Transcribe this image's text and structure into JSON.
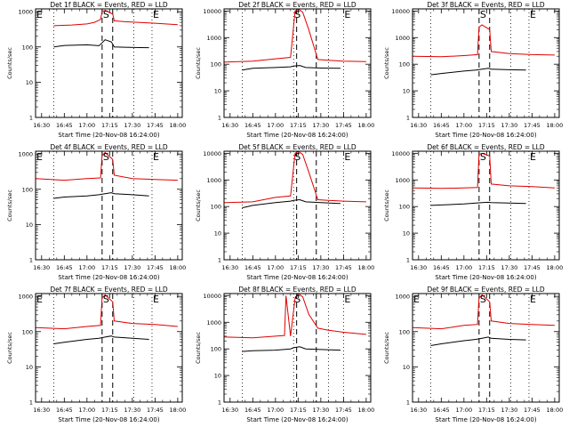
{
  "figure": {
    "background": "#ffffff",
    "events_color": "#000000",
    "lld_color": "#e00000"
  },
  "chart_data": [
    {
      "type": "line",
      "title": "Det 1f BLACK = Events, RED = LLD",
      "xlabel": "Start Time (20-Nov-08 16:24:00)",
      "ylabel": "Counts/sec",
      "yscale": "log",
      "ylim": [
        1,
        1200
      ],
      "xlim": [
        "16:26",
        "18:03"
      ],
      "xticks": [
        "16:30",
        "16:45",
        "17:00",
        "17:15",
        "17:30",
        "17:45",
        "18:00"
      ],
      "yticks": [
        "1",
        "10",
        "100",
        "1000"
      ],
      "markers": [
        {
          "label": "E",
          "x": "16:26",
          "style": "dotted"
        },
        {
          "label": "",
          "x": "16:38",
          "style": "dotted"
        },
        {
          "label": "S",
          "x": "17:10",
          "style": "dashed"
        },
        {
          "label": "",
          "x": "17:17",
          "style": "dashed"
        },
        {
          "label": "",
          "x": "17:31",
          "style": "dotted"
        },
        {
          "label": "E",
          "x": "17:43",
          "style": "dotted"
        }
      ],
      "series": [
        {
          "color": "#e00000",
          "x": [
            "16:38",
            "16:50",
            "17:00",
            "17:05",
            "17:09",
            "17:10",
            "17:12",
            "17:17",
            "17:18",
            "17:25",
            "17:45",
            "18:00"
          ],
          "y": [
            400,
            420,
            450,
            500,
            600,
            1000,
            1100,
            850,
            550,
            520,
            470,
            430
          ]
        },
        {
          "color": "#000000",
          "x": [
            "16:38",
            "16:45",
            "17:00",
            "17:08",
            "17:10",
            "17:12",
            "17:16",
            "17:17",
            "17:18",
            "17:25",
            "17:35",
            "17:41"
          ],
          "y": [
            100,
            110,
            115,
            108,
            130,
            160,
            140,
            120,
            100,
            98,
            96,
            95
          ]
        }
      ]
    },
    {
      "type": "line",
      "title": "Det 2f BLACK = Events, RED = LLD",
      "xlabel": "Start Time (20-Nov-08 16:24:00)",
      "ylabel": "Counts/sec",
      "yscale": "log",
      "ylim": [
        1,
        12000
      ],
      "xlim": [
        "16:26",
        "18:03"
      ],
      "xticks": [
        "16:30",
        "16:45",
        "17:00",
        "17:15",
        "17:30",
        "17:45",
        "18:00"
      ],
      "yticks": [
        "1",
        "10",
        "100",
        "1000",
        "10000"
      ],
      "markers": [
        {
          "label": "",
          "x": "16:38",
          "style": "dotted"
        },
        {
          "label": "S",
          "x": "17:12",
          "style": "dotted"
        },
        {
          "label": "",
          "x": "17:14",
          "style": "dashed"
        },
        {
          "label": "",
          "x": "17:27",
          "style": "dashed"
        },
        {
          "label": "",
          "x": "17:35",
          "style": "dotted"
        },
        {
          "label": "E",
          "x": "17:45",
          "style": "dotted"
        }
      ],
      "series": [
        {
          "color": "#e00000",
          "x": [
            "16:26",
            "16:45",
            "17:00",
            "17:10",
            "17:13",
            "17:15",
            "17:18",
            "17:22",
            "17:28",
            "17:35",
            "17:45",
            "18:00"
          ],
          "y": [
            120,
            130,
            160,
            180,
            10000,
            12000,
            9000,
            2000,
            150,
            140,
            130,
            125
          ]
        },
        {
          "color": "#000000",
          "x": [
            "16:38",
            "16:45",
            "17:00",
            "17:10",
            "17:12",
            "17:16",
            "17:20",
            "17:30",
            "17:43"
          ],
          "y": [
            60,
            70,
            75,
            80,
            85,
            90,
            75,
            72,
            70
          ]
        }
      ]
    },
    {
      "type": "line",
      "title": "Det 3f BLACK = Events, RED = LLD",
      "xlabel": "Start Time (20-Nov-08 16:24:00)",
      "ylabel": "Counts/sec",
      "yscale": "log",
      "ylim": [
        1,
        12000
      ],
      "xlim": [
        "16:26",
        "18:03"
      ],
      "xticks": [
        "16:30",
        "16:45",
        "17:00",
        "17:15",
        "17:30",
        "17:45",
        "18:00"
      ],
      "yticks": [
        "1",
        "10",
        "100",
        "1000",
        "10000"
      ],
      "markers": [
        {
          "label": "",
          "x": "16:38",
          "style": "dotted"
        },
        {
          "label": "S",
          "x": "17:10",
          "style": "dashed"
        },
        {
          "label": "",
          "x": "17:17",
          "style": "dashed"
        },
        {
          "label": "",
          "x": "17:31",
          "style": "dotted"
        },
        {
          "label": "E",
          "x": "17:43",
          "style": "dotted"
        }
      ],
      "series": [
        {
          "color": "#e00000",
          "x": [
            "16:26",
            "16:45",
            "17:00",
            "17:09",
            "17:10",
            "17:12",
            "17:17",
            "17:18",
            "17:30",
            "17:45",
            "18:00"
          ],
          "y": [
            200,
            190,
            210,
            230,
            2500,
            3000,
            2000,
            300,
            250,
            230,
            220
          ]
        },
        {
          "color": "#000000",
          "x": [
            "16:38",
            "16:45",
            "17:00",
            "17:08",
            "17:12",
            "17:16",
            "17:18",
            "17:30",
            "17:41"
          ],
          "y": [
            40,
            45,
            55,
            60,
            65,
            70,
            65,
            62,
            60
          ]
        }
      ]
    },
    {
      "type": "line",
      "title": "Det 4f BLACK = Events, RED = LLD",
      "xlabel": "Start Time (20-Nov-08 16:24:00)",
      "ylabel": "Counts/sec",
      "yscale": "log",
      "ylim": [
        1,
        1200
      ],
      "xlim": [
        "16:26",
        "18:03"
      ],
      "xticks": [
        "16:30",
        "16:45",
        "17:00",
        "17:15",
        "17:30",
        "17:45",
        "18:00"
      ],
      "yticks": [
        "1",
        "10",
        "100",
        "1000"
      ],
      "markers": [
        {
          "label": "E",
          "x": "16:26",
          "style": "dotted"
        },
        {
          "label": "",
          "x": "16:38",
          "style": "dotted"
        },
        {
          "label": "S",
          "x": "17:10",
          "style": "dashed"
        },
        {
          "label": "",
          "x": "17:17",
          "style": "dashed"
        },
        {
          "label": "",
          "x": "17:31",
          "style": "dotted"
        },
        {
          "label": "E",
          "x": "17:43",
          "style": "dotted"
        }
      ],
      "series": [
        {
          "color": "#e00000",
          "x": [
            "16:26",
            "16:45",
            "17:00",
            "17:09",
            "17:10",
            "17:12",
            "17:17",
            "17:18",
            "17:30",
            "17:45",
            "18:00"
          ],
          "y": [
            200,
            180,
            200,
            210,
            900,
            1100,
            700,
            250,
            200,
            190,
            180
          ]
        },
        {
          "color": "#000000",
          "x": [
            "16:38",
            "16:45",
            "17:00",
            "17:08",
            "17:12",
            "17:16",
            "17:18",
            "17:30",
            "17:41"
          ],
          "y": [
            55,
            60,
            65,
            70,
            75,
            80,
            75,
            70,
            65
          ]
        }
      ]
    },
    {
      "type": "line",
      "title": "Det 5f BLACK = Events, RED = LLD",
      "xlabel": "Start Time (20-Nov-08 16:24:00)",
      "ylabel": "Counts/sec",
      "yscale": "log",
      "ylim": [
        1,
        12000
      ],
      "xlim": [
        "16:26",
        "18:03"
      ],
      "xticks": [
        "16:30",
        "16:45",
        "17:00",
        "17:15",
        "17:30",
        "17:45",
        "18:00"
      ],
      "yticks": [
        "1",
        "10",
        "100",
        "1000",
        "10000"
      ],
      "markers": [
        {
          "label": "",
          "x": "16:38",
          "style": "dotted"
        },
        {
          "label": "S",
          "x": "17:12",
          "style": "dotted"
        },
        {
          "label": "",
          "x": "17:14",
          "style": "dashed"
        },
        {
          "label": "",
          "x": "17:27",
          "style": "dashed"
        },
        {
          "label": "",
          "x": "17:35",
          "style": "dotted"
        },
        {
          "label": "E",
          "x": "17:45",
          "style": "dotted"
        }
      ],
      "series": [
        {
          "color": "#e00000",
          "x": [
            "16:26",
            "16:45",
            "17:00",
            "17:10",
            "17:13",
            "17:15",
            "17:18",
            "17:22",
            "17:28",
            "17:35",
            "17:45",
            "18:00"
          ],
          "y": [
            140,
            150,
            220,
            250,
            10000,
            12000,
            9000,
            2000,
            180,
            170,
            160,
            150
          ]
        },
        {
          "color": "#000000",
          "x": [
            "16:38",
            "16:45",
            "17:00",
            "17:10",
            "17:12",
            "17:16",
            "17:20",
            "17:30",
            "17:43"
          ],
          "y": [
            90,
            110,
            140,
            160,
            170,
            180,
            150,
            140,
            130
          ]
        }
      ]
    },
    {
      "type": "line",
      "title": "Det 6f BLACK = Events, RED = LLD",
      "xlabel": "Start Time (20-Nov-08 16:24:00)",
      "ylabel": "Counts/sec",
      "yscale": "log",
      "ylim": [
        1,
        12000
      ],
      "xlim": [
        "16:26",
        "18:03"
      ],
      "xticks": [
        "16:30",
        "16:45",
        "17:00",
        "17:15",
        "17:30",
        "17:45",
        "18:00"
      ],
      "yticks": [
        "1",
        "10",
        "100",
        "1000",
        "10000"
      ],
      "markers": [
        {
          "label": "",
          "x": "16:38",
          "style": "dotted"
        },
        {
          "label": "S",
          "x": "17:10",
          "style": "dashed"
        },
        {
          "label": "",
          "x": "17:17",
          "style": "dashed"
        },
        {
          "label": "",
          "x": "17:31",
          "style": "dotted"
        },
        {
          "label": "E",
          "x": "17:43",
          "style": "dotted"
        }
      ],
      "series": [
        {
          "color": "#e00000",
          "x": [
            "16:26",
            "16:45",
            "17:00",
            "17:09",
            "17:10",
            "17:12",
            "17:17",
            "17:18",
            "17:30",
            "17:45",
            "18:00"
          ],
          "y": [
            500,
            480,
            500,
            520,
            9000,
            10000,
            8000,
            700,
            600,
            560,
            500
          ]
        },
        {
          "color": "#000000",
          "x": [
            "16:38",
            "16:45",
            "17:00",
            "17:08",
            "17:12",
            "17:16",
            "17:18",
            "17:30",
            "17:41"
          ],
          "y": [
            110,
            115,
            125,
            135,
            140,
            145,
            140,
            135,
            130
          ]
        }
      ]
    },
    {
      "type": "line",
      "title": "Det 7f BLACK = Events, RED = LLD",
      "xlabel": "Start Time (20-Nov-08 16:24:00)",
      "ylabel": "Counts/sec",
      "yscale": "log",
      "ylim": [
        1,
        1200
      ],
      "xlim": [
        "16:26",
        "18:03"
      ],
      "xticks": [
        "16:30",
        "16:45",
        "17:00",
        "17:15",
        "17:30",
        "17:45",
        "18:00"
      ],
      "yticks": [
        "1",
        "10",
        "100",
        "1000"
      ],
      "markers": [
        {
          "label": "E",
          "x": "16:26",
          "style": "dotted"
        },
        {
          "label": "",
          "x": "16:38",
          "style": "dotted"
        },
        {
          "label": "S",
          "x": "17:10",
          "style": "dashed"
        },
        {
          "label": "",
          "x": "17:17",
          "style": "dashed"
        },
        {
          "label": "",
          "x": "17:31",
          "style": "dotted"
        },
        {
          "label": "E",
          "x": "17:43",
          "style": "dotted"
        }
      ],
      "series": [
        {
          "color": "#e00000",
          "x": [
            "16:26",
            "16:45",
            "17:00",
            "17:09",
            "17:10",
            "17:12",
            "17:17",
            "17:18",
            "17:30",
            "17:45",
            "18:00"
          ],
          "y": [
            130,
            120,
            140,
            150,
            900,
            1100,
            700,
            200,
            170,
            160,
            140
          ]
        },
        {
          "color": "#000000",
          "x": [
            "16:38",
            "16:45",
            "17:00",
            "17:08",
            "17:12",
            "17:16",
            "17:18",
            "17:30",
            "17:41"
          ],
          "y": [
            45,
            50,
            60,
            65,
            70,
            75,
            70,
            65,
            60
          ]
        }
      ]
    },
    {
      "type": "line",
      "title": "Det 8f BLACK = Events, RED = LLD",
      "xlabel": "Start Time (20-Nov-08 16:24:00)",
      "ylabel": "Counts/sec",
      "yscale": "log",
      "ylim": [
        1,
        12000
      ],
      "xlim": [
        "16:26",
        "18:03"
      ],
      "xticks": [
        "16:30",
        "16:45",
        "17:00",
        "17:15",
        "17:30",
        "17:45",
        "18:00"
      ],
      "yticks": [
        "1",
        "10",
        "100",
        "1000",
        "10000"
      ],
      "markers": [
        {
          "label": "",
          "x": "16:38",
          "style": "dotted"
        },
        {
          "label": "S",
          "x": "17:12",
          "style": "dotted"
        },
        {
          "label": "",
          "x": "17:14",
          "style": "dashed"
        },
        {
          "label": "",
          "x": "17:27",
          "style": "dashed"
        },
        {
          "label": "",
          "x": "17:35",
          "style": "dotted"
        },
        {
          "label": "E",
          "x": "17:45",
          "style": "dotted"
        }
      ],
      "series": [
        {
          "color": "#e00000",
          "x": [
            "16:26",
            "16:45",
            "17:00",
            "17:06",
            "17:07",
            "17:10",
            "17:13",
            "17:15",
            "17:18",
            "17:22",
            "17:28",
            "17:35",
            "17:45",
            "18:00"
          ],
          "y": [
            280,
            260,
            300,
            320,
            10000,
            300,
            8000,
            12000,
            9000,
            2000,
            600,
            500,
            420,
            350
          ]
        },
        {
          "color": "#000000",
          "x": [
            "16:38",
            "16:45",
            "17:00",
            "17:10",
            "17:12",
            "17:16",
            "17:20",
            "17:30",
            "17:43"
          ],
          "y": [
            80,
            85,
            90,
            100,
            110,
            120,
            100,
            95,
            90
          ]
        }
      ]
    },
    {
      "type": "line",
      "title": "Det 9f BLACK = Events, RED = LLD",
      "xlabel": "Start Time (20-Nov-08 16:24:00)",
      "ylabel": "Counts/sec",
      "yscale": "log",
      "ylim": [
        1,
        1200
      ],
      "xlim": [
        "16:26",
        "18:03"
      ],
      "xticks": [
        "16:30",
        "16:45",
        "17:00",
        "17:15",
        "17:30",
        "17:45",
        "18:00"
      ],
      "yticks": [
        "1",
        "10",
        "100",
        "1000"
      ],
      "markers": [
        {
          "label": "E",
          "x": "16:26",
          "style": "dotted"
        },
        {
          "label": "",
          "x": "16:38",
          "style": "dotted"
        },
        {
          "label": "S",
          "x": "17:10",
          "style": "dashed"
        },
        {
          "label": "",
          "x": "17:17",
          "style": "dashed"
        },
        {
          "label": "",
          "x": "17:31",
          "style": "dotted"
        },
        {
          "label": "E",
          "x": "17:43",
          "style": "dotted"
        }
      ],
      "series": [
        {
          "color": "#e00000",
          "x": [
            "16:26",
            "16:45",
            "17:00",
            "17:09",
            "17:10",
            "17:12",
            "17:17",
            "17:18",
            "17:30",
            "17:45",
            "18:00"
          ],
          "y": [
            130,
            120,
            150,
            160,
            900,
            1100,
            700,
            200,
            170,
            160,
            150
          ]
        },
        {
          "color": "#000000",
          "x": [
            "16:38",
            "16:45",
            "17:00",
            "17:08",
            "17:12",
            "17:16",
            "17:18",
            "17:30",
            "17:41"
          ],
          "y": [
            40,
            45,
            55,
            60,
            65,
            70,
            65,
            60,
            58
          ]
        }
      ]
    }
  ]
}
